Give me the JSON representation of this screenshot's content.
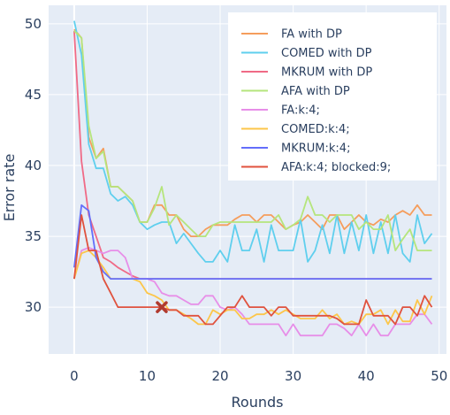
{
  "chart_data": {
    "type": "line",
    "title": "",
    "xlabel": "Rounds",
    "ylabel": "Error rate",
    "xlim": [
      -3.5,
      51
    ],
    "ylim": [
      26.7,
      51.3
    ],
    "xticks": [
      0,
      10,
      20,
      30,
      40,
      50
    ],
    "yticks": [
      30,
      35,
      40,
      45,
      50
    ],
    "grid": true,
    "background": "#e5ecf6",
    "legend_position": "top-right",
    "series": [
      {
        "name": "FA with DP",
        "color": "#f59d5c",
        "values": [
          49.6,
          49.0,
          42.0,
          40.5,
          41.2,
          38.5,
          38.5,
          38.0,
          37.5,
          36.0,
          36.0,
          37.2,
          37.2,
          36.5,
          36.5,
          35.5,
          35.0,
          35.0,
          35.5,
          35.8,
          35.8,
          35.8,
          36.2,
          36.5,
          36.5,
          36.0,
          36.5,
          36.5,
          36.0,
          35.5,
          35.8,
          36.0,
          36.5,
          36.0,
          35.5,
          36.5,
          36.5,
          35.5,
          36.0,
          36.5,
          36.0,
          35.8,
          36.2,
          36.0,
          36.5,
          36.8,
          36.5,
          37.2,
          36.5,
          36.5
        ]
      },
      {
        "name": "COMED with DP",
        "color": "#5fcfee",
        "values": [
          50.2,
          47.8,
          41.5,
          39.8,
          39.8,
          38.0,
          37.5,
          37.8,
          37.2,
          36.0,
          35.5,
          35.8,
          36.0,
          36.0,
          34.5,
          35.2,
          34.5,
          33.8,
          33.2,
          33.2,
          34.0,
          33.2,
          35.8,
          34.0,
          34.0,
          35.5,
          33.2,
          35.8,
          34.0,
          34.0,
          34.0,
          36.2,
          33.2,
          34.0,
          35.8,
          33.8,
          36.5,
          33.8,
          36.0,
          34.0,
          36.5,
          33.8,
          36.0,
          33.8,
          36.5,
          33.8,
          33.2,
          36.5,
          34.5,
          35.2
        ]
      },
      {
        "name": "MKRUM with DP",
        "color": "#f06a86",
        "values": [
          49.5,
          40.3,
          36.5,
          35.0,
          33.5,
          33.2,
          32.8,
          32.5,
          32.2,
          32.0,
          32.0,
          32.0,
          32.0,
          32.0,
          32.0,
          32.0,
          32.0,
          32.0,
          32.0,
          32.0,
          32.0,
          32.0,
          32.0,
          32.0,
          32.0,
          32.0,
          32.0,
          32.0,
          32.0,
          32.0,
          32.0,
          32.0,
          32.0,
          32.0,
          32.0,
          32.0,
          32.0,
          32.0,
          32.0,
          32.0,
          32.0,
          32.0,
          32.0,
          32.0,
          32.0,
          32.0,
          32.0,
          32.0,
          32.0,
          32.0
        ]
      },
      {
        "name": "AFA with DP",
        "color": "#b5e57c",
        "values": [
          49.5,
          49.0,
          42.8,
          40.5,
          41.0,
          38.5,
          38.5,
          38.0,
          37.5,
          36.0,
          36.0,
          37.0,
          38.5,
          35.8,
          36.5,
          36.0,
          35.5,
          35.0,
          35.0,
          35.8,
          36.0,
          36.0,
          36.0,
          36.0,
          36.0,
          36.0,
          36.0,
          36.0,
          36.5,
          35.5,
          35.8,
          36.2,
          37.8,
          36.5,
          36.5,
          36.0,
          36.5,
          36.5,
          36.5,
          35.5,
          36.0,
          35.5,
          35.5,
          36.5,
          34.0,
          34.8,
          35.5,
          34.0,
          34.0,
          34.0
        ]
      },
      {
        "name": "FA:k:4;",
        "color": "#e78ee8",
        "values": [
          32.0,
          34.0,
          34.2,
          34.0,
          33.8,
          34.0,
          34.0,
          33.5,
          32.0,
          32.0,
          32.0,
          31.8,
          31.0,
          30.8,
          30.8,
          30.5,
          30.2,
          30.2,
          30.8,
          30.8,
          30.0,
          29.8,
          30.0,
          29.5,
          28.8,
          28.8,
          28.8,
          28.8,
          28.8,
          28.0,
          28.8,
          28.0,
          28.0,
          28.0,
          28.0,
          28.8,
          28.8,
          28.5,
          28.0,
          28.8,
          28.0,
          28.8,
          28.0,
          28.0,
          28.8,
          28.8,
          28.8,
          29.5,
          29.5,
          28.8
        ]
      },
      {
        "name": "COMED:k:4;",
        "color": "#fcc64a",
        "values": [
          32.0,
          33.8,
          34.0,
          33.5,
          32.8,
          32.0,
          32.0,
          32.0,
          32.0,
          31.8,
          31.0,
          30.8,
          30.5,
          29.8,
          29.8,
          29.5,
          29.2,
          28.8,
          28.8,
          29.8,
          29.5,
          29.8,
          29.8,
          29.2,
          29.2,
          29.5,
          29.5,
          29.8,
          29.5,
          29.8,
          29.5,
          29.2,
          29.2,
          29.2,
          29.8,
          29.2,
          29.5,
          28.8,
          29.0,
          28.8,
          29.5,
          29.5,
          29.8,
          28.8,
          29.8,
          29.0,
          29.0,
          30.5,
          29.5,
          30.8
        ]
      },
      {
        "name": "MKRUM:k:4;",
        "color": "#636efa",
        "values": [
          32.8,
          37.2,
          36.8,
          33.5,
          32.5,
          32.0,
          32.0,
          32.0,
          32.0,
          32.0,
          32.0,
          32.0,
          32.0,
          32.0,
          32.0,
          32.0,
          32.0,
          32.0,
          32.0,
          32.0,
          32.0,
          32.0,
          32.0,
          32.0,
          32.0,
          32.0,
          32.0,
          32.0,
          32.0,
          32.0,
          32.0,
          32.0,
          32.0,
          32.0,
          32.0,
          32.0,
          32.0,
          32.0,
          32.0,
          32.0,
          32.0,
          32.0,
          32.0,
          32.0,
          32.0,
          32.0,
          32.0,
          32.0,
          32.0,
          32.0
        ]
      },
      {
        "name": "AFA:k:4; blocked:9;",
        "color": "#e0523e",
        "values": [
          32.0,
          36.5,
          34.0,
          34.0,
          32.0,
          31.0,
          30.0,
          30.0,
          30.0,
          30.0,
          30.0,
          30.0,
          30.0,
          29.8,
          29.8,
          29.4,
          29.4,
          29.4,
          28.8,
          28.8,
          29.4,
          30.0,
          30.0,
          30.8,
          30.0,
          30.0,
          30.0,
          29.4,
          30.0,
          30.0,
          29.4,
          29.4,
          29.4,
          29.4,
          29.4,
          29.4,
          29.2,
          28.8,
          28.8,
          28.8,
          30.5,
          29.4,
          29.4,
          29.4,
          28.8,
          30.0,
          30.0,
          29.4,
          30.8,
          30.0
        ]
      }
    ],
    "markers": [
      {
        "series": "AFA:k:4; blocked:9;",
        "x": 12,
        "y": 30.0,
        "symbol": "x",
        "color": "#b03a2e"
      }
    ]
  }
}
